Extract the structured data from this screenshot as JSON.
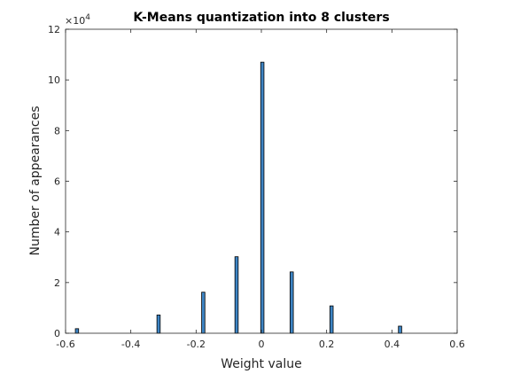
{
  "chart_data": {
    "type": "bar",
    "title": "K-Means quantization into 8 clusters",
    "xlabel": "Weight value",
    "ylabel": "Number of appearances",
    "y_exponent_base": "×10",
    "y_exponent_power": "4",
    "xlim": [
      -0.6,
      0.6
    ],
    "ylim": [
      0,
      12
    ],
    "x_ticks": [
      -0.6,
      -0.4,
      -0.2,
      0,
      0.2,
      0.4,
      0.6
    ],
    "x_tick_labels": [
      "-0.6",
      "-0.4",
      "-0.2",
      "0",
      "0.2",
      "0.4",
      "0.6"
    ],
    "y_ticks": [
      0,
      2,
      4,
      6,
      8,
      10,
      12
    ],
    "y_tick_labels": [
      "0",
      "2",
      "4",
      "6",
      "8",
      "10",
      "12"
    ],
    "bar_width": 0.01,
    "x": [
      -0.565,
      -0.315,
      -0.178,
      -0.076,
      0.003,
      0.093,
      0.215,
      0.425
    ],
    "values": [
      0.18,
      0.72,
      1.62,
      3.02,
      10.7,
      2.42,
      1.08,
      0.28
    ],
    "grid": false,
    "colors": {
      "bar_fill": "#3d84c4",
      "bar_edge": "#000000",
      "axis": "#262626"
    }
  }
}
